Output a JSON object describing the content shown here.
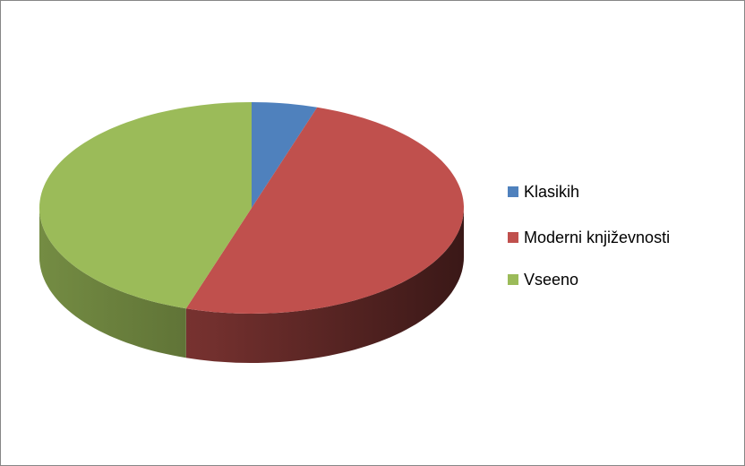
{
  "chart_data": {
    "type": "pie",
    "style": "3d",
    "categories": [
      "Klasikih",
      "Moderni književnosti",
      "Vseeno"
    ],
    "values": [
      5,
      50,
      45
    ],
    "colors": [
      "#4f81bd",
      "#c0504d",
      "#9bbb59"
    ],
    "legend": "right"
  }
}
